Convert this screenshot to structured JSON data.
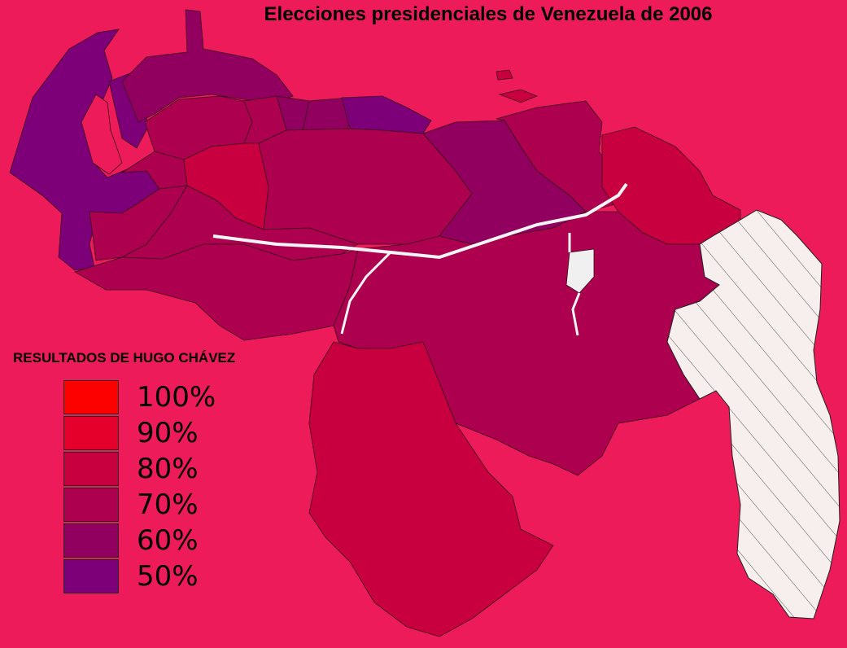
{
  "title": "Elecciones presidenciales de Venezuela de 2006",
  "legend": {
    "title": "RESULTADOS DE HUGO CHÁVEZ",
    "items": [
      {
        "label": "100%",
        "color": "#fd0000"
      },
      {
        "label": "90%",
        "color": "#e4002a"
      },
      {
        "label": "80%",
        "color": "#c9003f"
      },
      {
        "label": "70%",
        "color": "#ad004e"
      },
      {
        "label": "60%",
        "color": "#92005f"
      },
      {
        "label": "50%",
        "color": "#7d0078"
      }
    ]
  },
  "colors": {
    "background": "#ee1b5a",
    "region_50": "#7d0078",
    "region_60": "#92005f",
    "region_70": "#ad004e",
    "region_80": "#c9003f",
    "region_90": "#e4002a",
    "disputed_fill": "#f7eeee",
    "disputed_hatch": "#555555"
  }
}
